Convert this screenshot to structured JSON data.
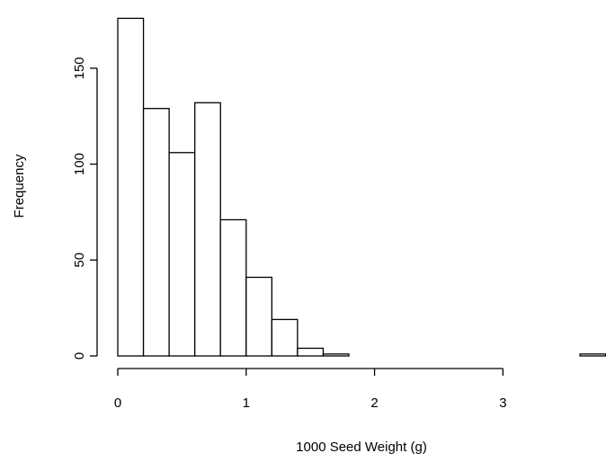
{
  "chart_data": {
    "type": "histogram",
    "xlabel": "1000 Seed Weight (g)",
    "ylabel": "Frequency",
    "bins": [
      0,
      0.2,
      0.4,
      0.6,
      0.8,
      1.0,
      1.2,
      1.4,
      1.6,
      1.8,
      2.0,
      2.2,
      2.4,
      2.6,
      2.8,
      3.0,
      3.2,
      3.4,
      3.6,
      3.8
    ],
    "values": [
      176,
      129,
      106,
      132,
      71,
      41,
      19,
      4,
      1,
      0,
      0,
      0,
      0,
      0,
      0,
      0,
      0,
      0,
      1
    ],
    "color": "#ffffff",
    "xlim": [
      0,
      3.8
    ],
    "xticks": [
      0,
      1,
      2,
      3
    ],
    "ylim": [
      0,
      176
    ],
    "yticks": [
      0,
      50,
      100,
      150
    ]
  }
}
